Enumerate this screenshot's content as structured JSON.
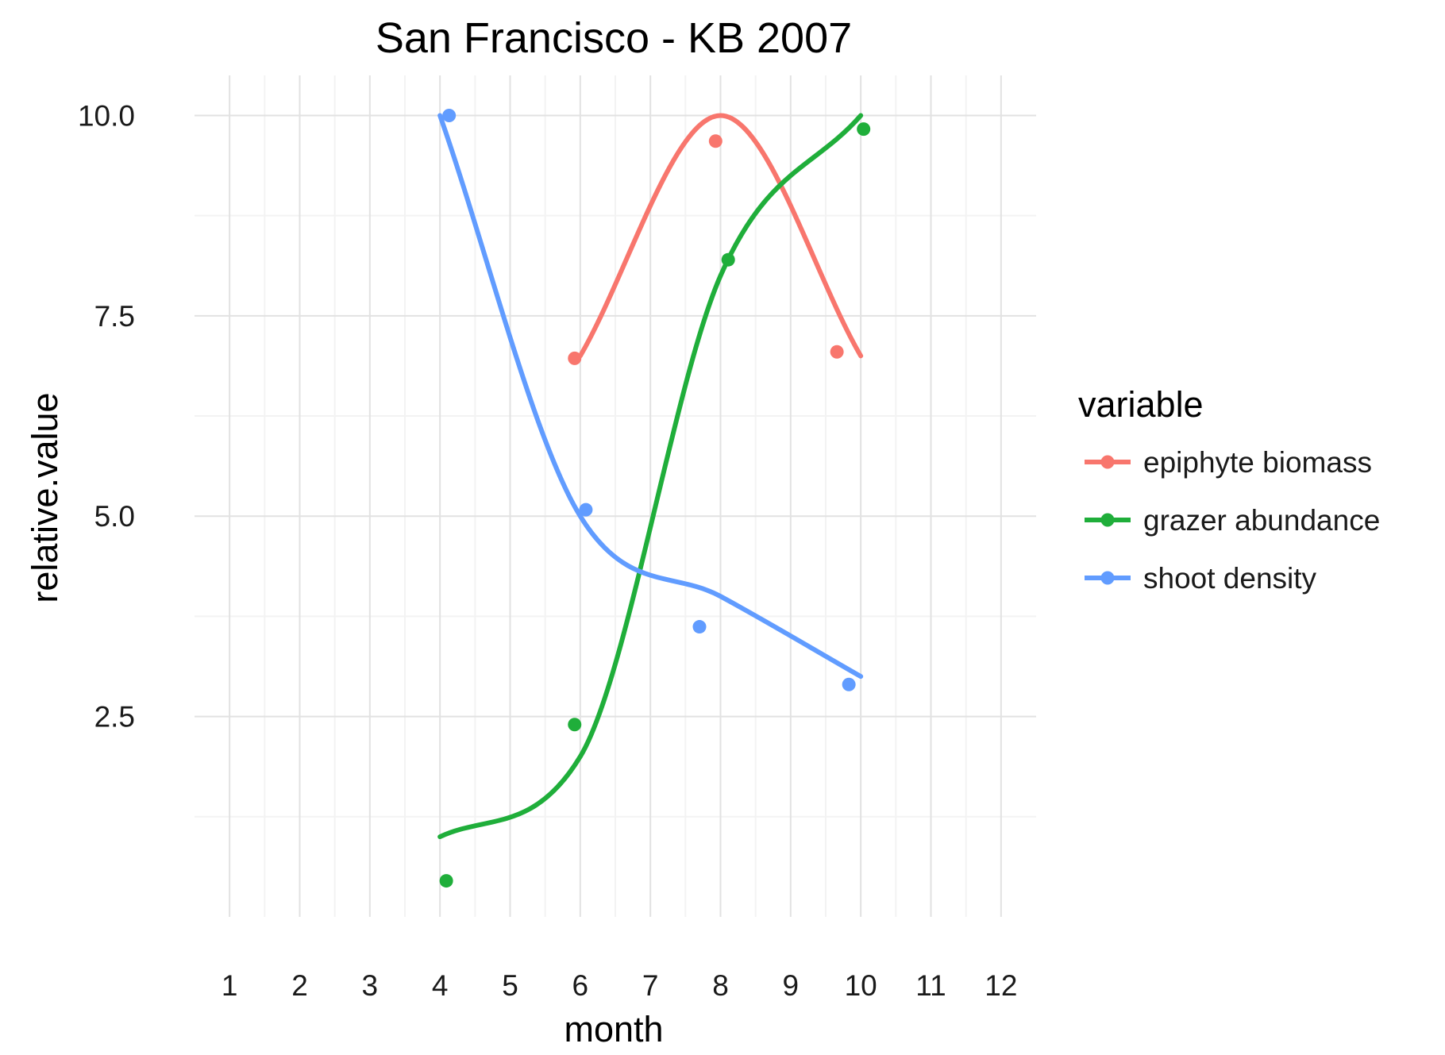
{
  "chart_data": {
    "type": "line",
    "title": "San Francisco - KB 2007",
    "xlabel": "month",
    "ylabel": "relative.value",
    "xlim": [
      0.5,
      12.5
    ],
    "ylim": [
      0.0,
      10.5
    ],
    "x_ticks": [
      1,
      2,
      3,
      4,
      5,
      6,
      7,
      8,
      9,
      10,
      11,
      12
    ],
    "x_tick_labels": [
      "1",
      "2",
      "3",
      "4",
      "5",
      "6",
      "7",
      "8",
      "9",
      "10",
      "11",
      "12"
    ],
    "y_ticks": [
      2.5,
      5.0,
      7.5,
      10.0
    ],
    "y_tick_labels": [
      "2.5",
      "5.0",
      "7.5",
      "10.0"
    ],
    "grid": true,
    "legend": {
      "title": "variable",
      "position": "right"
    },
    "series": [
      {
        "name": "epiphyte biomass",
        "color": "#F8766D",
        "line": {
          "x": [
            6,
            8,
            10
          ],
          "y": [
            7.0,
            10.0,
            7.0
          ]
        },
        "points": {
          "x": [
            5.92,
            7.93,
            9.66
          ],
          "y": [
            6.97,
            9.68,
            7.05
          ]
        }
      },
      {
        "name": "grazer abundance",
        "color": "#1FAE3A",
        "line": {
          "x": [
            4,
            6,
            8,
            10
          ],
          "y": [
            1.0,
            2.0,
            8.0,
            10.0
          ]
        },
        "points": {
          "x": [
            4.09,
            5.92,
            8.11,
            10.04
          ],
          "y": [
            0.45,
            2.4,
            8.2,
            9.83
          ]
        }
      },
      {
        "name": "shoot density",
        "color": "#619CFF",
        "line": {
          "x": [
            4,
            6,
            8,
            10
          ],
          "y": [
            10.0,
            5.0,
            4.0,
            3.0
          ]
        },
        "points": {
          "x": [
            4.13,
            6.08,
            7.7,
            9.83
          ],
          "y": [
            10.0,
            5.08,
            3.62,
            2.9
          ]
        }
      }
    ]
  }
}
